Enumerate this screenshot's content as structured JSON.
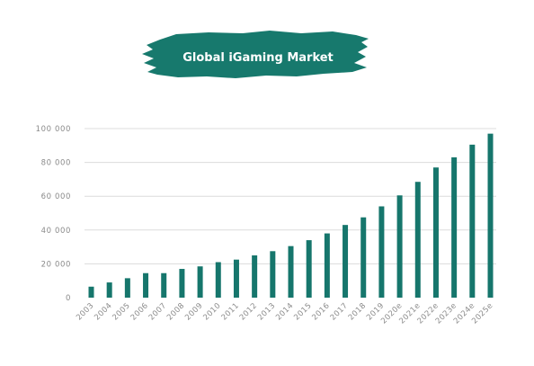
{
  "colors": {
    "bar": "#16766c",
    "banner": "#17796d",
    "grid": "#dcdcdc",
    "text": "#8a8a8a"
  },
  "chart_data": {
    "type": "bar",
    "title": "Global iGaming Market",
    "xlabel": "",
    "ylabel": "",
    "ylim": [
      0,
      100000
    ],
    "yticks": [
      {
        "value": 0,
        "label": "0"
      },
      {
        "value": 20000,
        "label": "20 000"
      },
      {
        "value": 40000,
        "label": "40 000"
      },
      {
        "value": 60000,
        "label": "60 000"
      },
      {
        "value": 80000,
        "label": "80 000"
      },
      {
        "value": 100000,
        "label": "100 000"
      }
    ],
    "grid": true,
    "legend": "none",
    "categories": [
      "2003",
      "2004",
      "2005",
      "2006",
      "2007",
      "2008",
      "2009",
      "2010",
      "2011",
      "2012",
      "2013",
      "2014",
      "2015",
      "2016",
      "2017",
      "2018",
      "2019",
      "2020e",
      "2021e",
      "2022e",
      "2023e",
      "2024e",
      "2025e"
    ],
    "values": [
      6500,
      9000,
      11500,
      14500,
      14500,
      17000,
      18500,
      21000,
      22500,
      25000,
      27500,
      30500,
      34000,
      38000,
      43000,
      47500,
      54000,
      60500,
      68500,
      77000,
      83000,
      90500,
      97000
    ]
  }
}
